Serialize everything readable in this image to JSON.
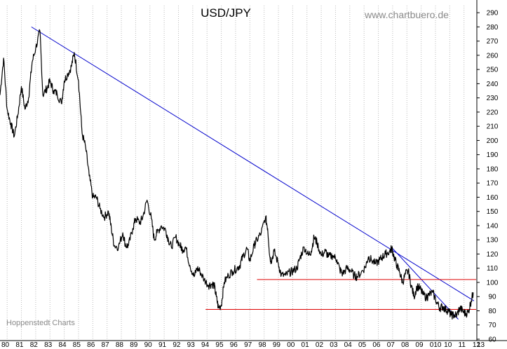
{
  "chart_data": {
    "type": "line",
    "title": "USD/JPY",
    "watermark": "www.chartbuero.de",
    "credit": "Hoppenstedt Charts",
    "xlabel": "",
    "ylabel": "",
    "xlim": [
      1980.0,
      2013.35
    ],
    "ylim": [
      60,
      295
    ],
    "x_tick_labels": [
      "80",
      "81",
      "82",
      "83",
      "84",
      "85",
      "86",
      "87",
      "88",
      "89",
      "90",
      "91",
      "92",
      "93",
      "94",
      "95",
      "96",
      "97",
      "98",
      "99",
      "00",
      "01",
      "02",
      "03",
      "04",
      "05",
      "06",
      "07",
      "08",
      "09",
      "010",
      "10",
      "11",
      "12",
      "13",
      "1"
    ],
    "y_ticks": [
      60,
      70,
      80,
      90,
      100,
      110,
      120,
      130,
      140,
      150,
      160,
      170,
      180,
      190,
      200,
      210,
      220,
      230,
      240,
      250,
      260,
      270,
      280,
      290
    ],
    "grid": "vertical dotted lines at each year",
    "y_axis_position": "right",
    "series": [
      {
        "color": "#000000",
        "points": [
          [
            1980.0,
            232
          ],
          [
            1980.25,
            258
          ],
          [
            1980.5,
            222
          ],
          [
            1980.75,
            212
          ],
          [
            1981.0,
            203
          ],
          [
            1981.25,
            218
          ],
          [
            1981.5,
            238
          ],
          [
            1981.75,
            222
          ],
          [
            1982.0,
            230
          ],
          [
            1982.25,
            255
          ],
          [
            1982.5,
            265
          ],
          [
            1982.8,
            277
          ],
          [
            1983.0,
            232
          ],
          [
            1983.3,
            237
          ],
          [
            1983.5,
            242
          ],
          [
            1983.75,
            235
          ],
          [
            1984.0,
            233
          ],
          [
            1984.3,
            226
          ],
          [
            1984.5,
            242
          ],
          [
            1984.75,
            247
          ],
          [
            1985.0,
            252
          ],
          [
            1985.2,
            262
          ],
          [
            1985.5,
            242
          ],
          [
            1985.75,
            205
          ],
          [
            1986.0,
            195
          ],
          [
            1986.25,
            175
          ],
          [
            1986.5,
            160
          ],
          [
            1986.75,
            160
          ],
          [
            1987.0,
            152
          ],
          [
            1987.3,
            146
          ],
          [
            1987.6,
            150
          ],
          [
            1987.8,
            138
          ],
          [
            1988.0,
            126
          ],
          [
            1988.3,
            125
          ],
          [
            1988.6,
            135
          ],
          [
            1988.8,
            126
          ],
          [
            1989.0,
            126
          ],
          [
            1989.3,
            138
          ],
          [
            1989.5,
            145
          ],
          [
            1989.8,
            142
          ],
          [
            1990.0,
            146
          ],
          [
            1990.3,
            158
          ],
          [
            1990.6,
            145
          ],
          [
            1990.8,
            130
          ],
          [
            1991.0,
            135
          ],
          [
            1991.3,
            140
          ],
          [
            1991.6,
            137
          ],
          [
            1991.8,
            130
          ],
          [
            1992.0,
            125
          ],
          [
            1992.3,
            132
          ],
          [
            1992.6,
            126
          ],
          [
            1992.8,
            123
          ],
          [
            1993.0,
            125
          ],
          [
            1993.3,
            112
          ],
          [
            1993.6,
            104
          ],
          [
            1993.8,
            110
          ],
          [
            1994.0,
            108
          ],
          [
            1994.3,
            102
          ],
          [
            1994.6,
            98
          ],
          [
            1994.85,
            99
          ],
          [
            1995.0,
            98
          ],
          [
            1995.15,
            90
          ],
          [
            1995.3,
            82
          ],
          [
            1995.5,
            84
          ],
          [
            1995.7,
            100
          ],
          [
            1996.0,
            105
          ],
          [
            1996.3,
            108
          ],
          [
            1996.6,
            110
          ],
          [
            1996.8,
            112
          ],
          [
            1997.0,
            118
          ],
          [
            1997.3,
            124
          ],
          [
            1997.5,
            115
          ],
          [
            1997.8,
            126
          ],
          [
            1998.0,
            130
          ],
          [
            1998.3,
            135
          ],
          [
            1998.6,
            146
          ],
          [
            1998.75,
            138
          ],
          [
            1998.9,
            118
          ],
          [
            1999.0,
            115
          ],
          [
            1999.2,
            122
          ],
          [
            1999.5,
            113
          ],
          [
            1999.7,
            105
          ],
          [
            2000.0,
            105
          ],
          [
            2000.3,
            107
          ],
          [
            2000.5,
            108
          ],
          [
            2000.8,
            110
          ],
          [
            2001.0,
            117
          ],
          [
            2001.3,
            125
          ],
          [
            2001.6,
            119
          ],
          [
            2001.8,
            122
          ],
          [
            2002.0,
            132
          ],
          [
            2002.2,
            128
          ],
          [
            2002.5,
            119
          ],
          [
            2002.8,
            122
          ],
          [
            2003.0,
            118
          ],
          [
            2003.3,
            119
          ],
          [
            2003.6,
            116
          ],
          [
            2003.8,
            109
          ],
          [
            2004.0,
            106
          ],
          [
            2004.3,
            110
          ],
          [
            2004.5,
            109
          ],
          [
            2004.8,
            105
          ],
          [
            2005.0,
            104
          ],
          [
            2005.3,
            107
          ],
          [
            2005.6,
            111
          ],
          [
            2005.8,
            118
          ],
          [
            2006.0,
            116
          ],
          [
            2006.3,
            113
          ],
          [
            2006.6,
            116
          ],
          [
            2006.8,
            118
          ],
          [
            2007.0,
            120
          ],
          [
            2007.3,
            122
          ],
          [
            2007.45,
            124
          ],
          [
            2007.6,
            118
          ],
          [
            2007.8,
            112
          ],
          [
            2008.0,
            107
          ],
          [
            2008.2,
            100
          ],
          [
            2008.4,
            106
          ],
          [
            2008.6,
            108
          ],
          [
            2008.8,
            98
          ],
          [
            2009.0,
            90
          ],
          [
            2009.2,
            97
          ],
          [
            2009.4,
            96
          ],
          [
            2009.6,
            92
          ],
          [
            2009.9,
            89
          ],
          [
            2010.0,
            91
          ],
          [
            2010.3,
            93
          ],
          [
            2010.6,
            86
          ],
          [
            2010.8,
            82
          ],
          [
            2011.0,
            83
          ],
          [
            2011.2,
            81
          ],
          [
            2011.4,
            80
          ],
          [
            2011.6,
            77
          ],
          [
            2011.8,
            77
          ],
          [
            2012.0,
            77
          ],
          [
            2012.2,
            82
          ],
          [
            2012.4,
            80
          ],
          [
            2012.6,
            78
          ],
          [
            2012.8,
            79
          ],
          [
            2013.0,
            87
          ],
          [
            2013.15,
            93
          ]
        ]
      }
    ],
    "trendlines": [
      {
        "color": "#0000cc",
        "from": [
          1982.2,
          280
        ],
        "to": [
          2013.2,
          87
        ]
      },
      {
        "color": "#0000cc",
        "from": [
          2007.4,
          125
        ],
        "to": [
          2012.1,
          74
        ]
      },
      {
        "color": "#dd0000",
        "from": [
          1998.0,
          102
        ],
        "to": [
          2013.35,
          102
        ]
      },
      {
        "color": "#dd0000",
        "from": [
          1994.4,
          81
        ],
        "to": [
          2013.35,
          81
        ]
      }
    ]
  }
}
